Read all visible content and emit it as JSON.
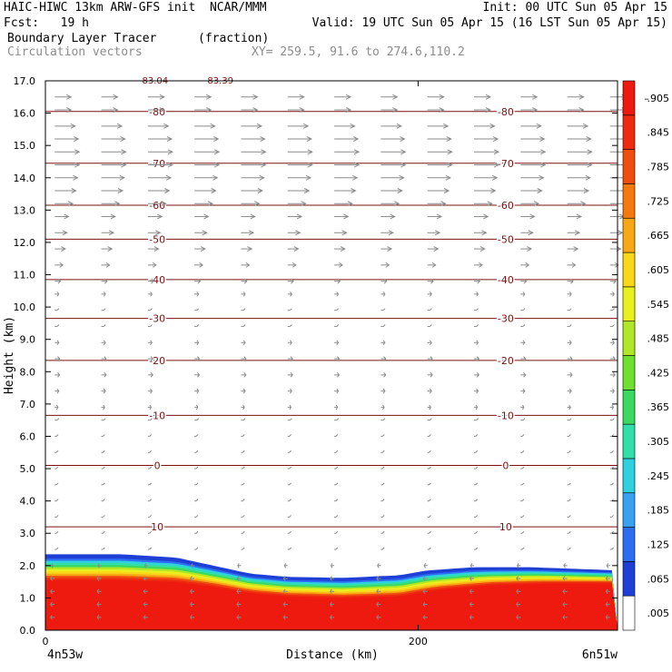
{
  "header": {
    "line1_left": "HAIC-HIWC 13km ARW-GFS init  NCAR/MMM",
    "line1_right": "Init: 00 UTC Sun 05 Apr 15",
    "line2_left": "Fcst:   19 h",
    "line2_right": "Valid: 19 UTC Sun 05 Apr 15 (16 LST Sun 05 Apr 15)",
    "line3_left": "Boundary Layer Tracer",
    "line3_unit": "(fraction)",
    "line4_left": "Circulation vectors",
    "line4_right": "XY= 259.5, 91.6 to 274.6,110.2"
  },
  "colors": {
    "contour": "#7a1010",
    "vector": "#8a8a8a",
    "palette": [
      "#ffffff",
      "#1f3fd6",
      "#2d6ef0",
      "#3aa0f0",
      "#2fd0e0",
      "#30e0a8",
      "#3cd860",
      "#70e030",
      "#b0e828",
      "#e8f020",
      "#f8d818",
      "#f8a814",
      "#f47a10",
      "#f04e0e",
      "#ee2a10",
      "#ee1a10"
    ]
  },
  "chart_data": {
    "type": "cross-section",
    "xlabel": "Distance (km)",
    "ylabel": "Height (km)",
    "xlim": [
      0,
      307
    ],
    "ylim": [
      0.0,
      17.0
    ],
    "x_tick_labels": [
      "0",
      "200"
    ],
    "x_tick_values": [
      0,
      200
    ],
    "end_labels": [
      "4n53w",
      "6n51w"
    ],
    "y_tick_labels": [
      "0.0",
      "1.0",
      "2.0",
      "3.0",
      "4.0",
      "5.0",
      "6.0",
      "7.0",
      "8.0",
      "9.0",
      "10.0",
      "11.0",
      "12.0",
      "13.0",
      "14.0",
      "15.0",
      "16.0",
      "17.0"
    ],
    "y_tick_values": [
      0,
      1,
      2,
      3,
      4,
      5,
      6,
      7,
      8,
      9,
      10,
      11,
      12,
      13,
      14,
      15,
      16,
      17
    ],
    "colorbar": {
      "labels": [
        ".005",
        ".065",
        ".125",
        ".185",
        ".245",
        ".305",
        ".365",
        ".425",
        ".485",
        ".545",
        ".605",
        ".665",
        ".725",
        ".785",
        ".845",
        ".905"
      ],
      "values": [
        0.005,
        0.065,
        0.125,
        0.185,
        0.245,
        0.305,
        0.365,
        0.425,
        0.485,
        0.545,
        0.605,
        0.665,
        0.725,
        0.785,
        0.845,
        0.905
      ],
      "top_label": "–"
    },
    "tracer_top_km": [
      [
        0,
        2.35
      ],
      [
        40,
        2.35
      ],
      [
        70,
        2.25
      ],
      [
        90,
        2.0
      ],
      [
        110,
        1.75
      ],
      [
        130,
        1.65
      ],
      [
        160,
        1.62
      ],
      [
        190,
        1.7
      ],
      [
        205,
        1.85
      ],
      [
        230,
        1.95
      ],
      [
        260,
        1.95
      ],
      [
        307,
        1.85
      ]
    ],
    "tracer_full_km": [
      [
        0,
        1.55
      ],
      [
        40,
        1.55
      ],
      [
        70,
        1.5
      ],
      [
        90,
        1.35
      ],
      [
        110,
        1.15
      ],
      [
        130,
        1.05
      ],
      [
        160,
        1.0
      ],
      [
        190,
        1.05
      ],
      [
        210,
        1.25
      ],
      [
        240,
        1.4
      ],
      [
        270,
        1.45
      ],
      [
        307,
        1.45
      ]
    ],
    "temperature_contours": [
      {
        "label": "10",
        "z": 3.2
      },
      {
        "label": "0",
        "z": 5.1
      },
      {
        "label": "-10",
        "z": 6.65
      },
      {
        "label": "-20",
        "z": 8.35
      },
      {
        "label": "-30",
        "z": 9.65
      },
      {
        "label": "-40",
        "z": 10.85
      },
      {
        "label": "-50",
        "z": 12.1
      },
      {
        "label": "-60",
        "z": 13.15
      },
      {
        "label": "-70",
        "z": 14.45
      },
      {
        "label": "-80",
        "z": 16.05
      },
      {
        "label": "-83.04",
        "z": 17.1
      },
      {
        "label": "-83.39",
        "z": 17.1
      }
    ],
    "vectors": {
      "x_km": [
        5,
        30,
        55,
        80,
        105,
        130,
        155,
        180,
        205,
        230,
        255,
        280,
        303
      ],
      "rows": [
        {
          "z": 16.5,
          "u": 1.0
        },
        {
          "z": 16.1,
          "u": 1.0
        },
        {
          "z": 15.6,
          "u": 1.25
        },
        {
          "z": 15.2,
          "u": 1.45
        },
        {
          "z": 14.8,
          "u": 1.5
        },
        {
          "z": 14.4,
          "u": 1.5
        },
        {
          "z": 14.0,
          "u": 1.4
        },
        {
          "z": 13.6,
          "u": 1.3
        },
        {
          "z": 13.2,
          "u": 1.1
        },
        {
          "z": 12.8,
          "u": 0.85
        },
        {
          "z": 12.3,
          "u": 0.75
        },
        {
          "z": 11.8,
          "u": 0.65
        },
        {
          "z": 11.3,
          "u": 0.5
        },
        {
          "z": 10.8,
          "u": 0.35
        },
        {
          "z": 10.4,
          "u": 0.25
        },
        {
          "z": 9.9,
          "u": 0.15
        },
        {
          "z": 9.4,
          "u": 0.15
        },
        {
          "z": 8.9,
          "u": 0.25
        },
        {
          "z": 8.4,
          "u": 0.3
        },
        {
          "z": 7.9,
          "u": 0.3
        },
        {
          "z": 7.4,
          "u": 0.25
        },
        {
          "z": 6.9,
          "u": 0.2
        },
        {
          "z": 6.5,
          "u": 0.15
        },
        {
          "z": 6.0,
          "u": 0.1
        },
        {
          "z": 5.5,
          "u": 0.1
        },
        {
          "z": 5.0,
          "u": 0.1
        },
        {
          "z": 4.5,
          "u": 0.1
        },
        {
          "z": 4.0,
          "u": 0.1
        },
        {
          "z": 3.5,
          "u": 0.1
        },
        {
          "z": 3.0,
          "u": 0.1
        },
        {
          "z": 2.5,
          "u": 0.1
        },
        {
          "z": 2.0,
          "u": -0.2
        },
        {
          "z": 1.6,
          "u": -0.25
        },
        {
          "z": 1.2,
          "u": -0.25
        },
        {
          "z": 0.8,
          "u": -0.25
        },
        {
          "z": 0.4,
          "u": -0.25
        }
      ]
    }
  }
}
